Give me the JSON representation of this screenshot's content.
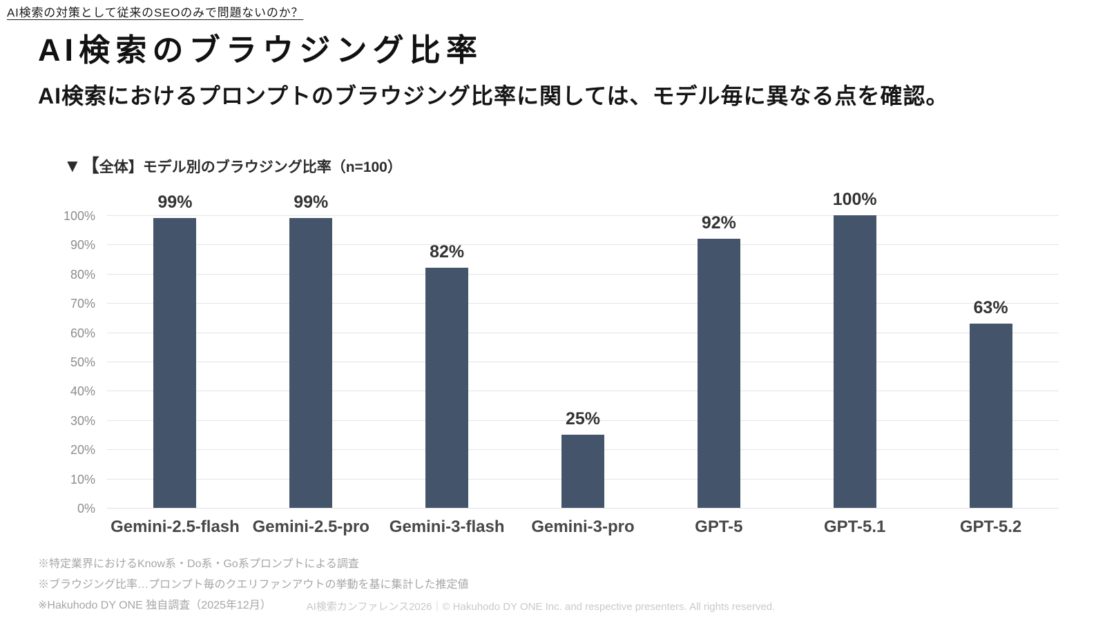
{
  "page": {
    "topic_link": "AI検索の対策として従来のSEOのみで問題ないのか？",
    "title": "AI検索のブラウジング比率",
    "subtitle": "AI検索におけるプロンプトのブラウジング比率に関しては、モデル毎に異なる点を確認。"
  },
  "chart_data": {
    "type": "bar",
    "title": "▼【全体】モデル別のブラウジング比率（n=100）",
    "categories": [
      "Gemini-2.5-flash",
      "Gemini-2.5-pro",
      "Gemini-3-flash",
      "Gemini-3-pro",
      "GPT-5",
      "GPT-5.1",
      "GPT-5.2"
    ],
    "values": [
      99,
      99,
      82,
      25,
      92,
      100,
      63
    ],
    "value_labels": [
      "99%",
      "99%",
      "82%",
      "25%",
      "92%",
      "100%",
      "63%"
    ],
    "ylim": [
      0,
      100
    ],
    "ytick_step": 10,
    "ytick_suffix": "%",
    "grid": true,
    "legend": false,
    "bar_color": "#44546a"
  },
  "footnotes": [
    "※特定業界におけるKnow系・Do系・Go系プロンプトによる調査",
    "※ブラウジング比率…プロンプト毎のクエリファンアウトの挙動を基に集計した推定値",
    "※Hakuhodo DY ONE 独自調査（2025年12月）"
  ],
  "footer": {
    "copyright": "AI検索カンファレンス2026｜© Hakuhodo DY ONE Inc. and respective presenters. All rights reserved."
  }
}
